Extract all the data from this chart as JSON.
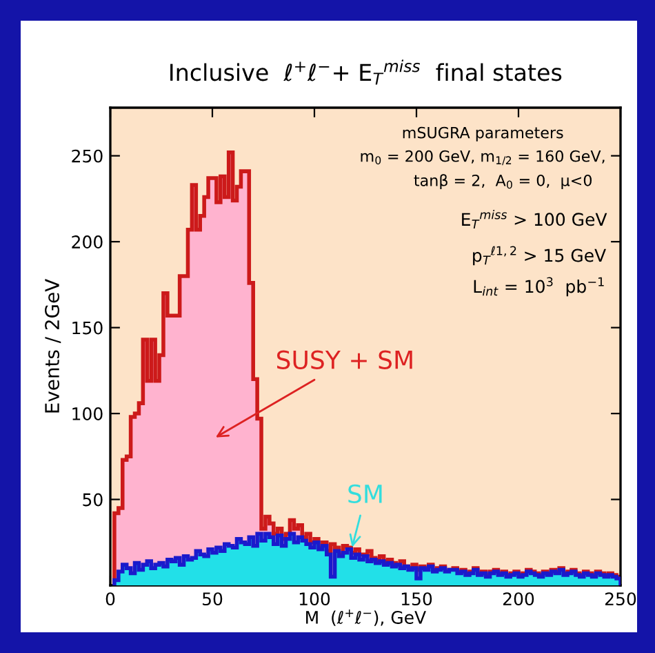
{
  "chart_data": {
    "type": "histogram",
    "title": "Inclusive  ℓ$^{+}$ℓ$^{−}$+ E$_{T}$$^{miss}$  final states",
    "xlabel": "M  (ℓ$^{+}$ℓ$^{−}$), GeV",
    "ylabel": "Events / 2GeV",
    "bins": [
      2,
      4,
      6,
      8,
      10,
      12,
      14,
      16,
      18,
      20,
      22,
      24,
      26,
      28,
      30,
      32,
      34,
      36,
      38,
      40,
      42,
      44,
      46,
      48,
      50,
      52,
      54,
      56,
      58,
      60,
      62,
      64,
      66,
      68,
      70,
      72,
      74,
      76,
      78,
      80,
      82,
      84,
      86,
      88,
      90,
      92,
      94,
      96,
      98,
      100,
      102,
      104,
      106,
      108,
      110,
      112,
      114,
      116,
      118,
      120,
      122,
      124,
      126,
      128,
      130,
      132,
      134,
      136,
      138,
      140,
      142,
      144,
      146,
      148,
      150,
      152,
      154,
      156,
      158,
      160,
      162,
      164,
      166,
      168,
      170,
      172,
      174,
      176,
      178,
      180,
      182,
      184,
      186,
      188,
      190,
      192,
      194,
      196,
      198,
      200,
      202,
      204,
      206,
      208,
      210,
      212,
      214,
      216,
      218,
      220,
      222,
      224,
      226,
      228,
      230,
      232,
      234,
      236,
      238,
      240,
      242,
      244,
      246,
      248,
      250
    ],
    "series": [
      {
        "name": "SUSY + SM",
        "color": "#ffb3cf",
        "values": [
          42,
          45,
          73,
          75,
          98,
          100,
          106,
          143,
          119,
          143,
          119,
          134,
          170,
          157,
          157,
          157,
          180,
          180,
          207,
          233,
          207,
          215,
          226,
          237,
          237,
          223,
          238,
          226,
          252,
          224,
          232,
          241,
          241,
          176,
          120,
          97,
          33,
          40,
          36,
          30,
          33,
          27,
          30,
          38,
          33,
          35,
          28,
          30,
          25,
          27,
          22,
          25,
          20,
          24,
          22,
          18,
          23,
          22,
          19,
          21,
          18,
          18,
          20,
          16,
          15,
          17,
          14,
          15,
          13,
          12,
          14,
          11,
          10,
          12,
          9,
          11,
          10,
          12,
          9,
          10,
          11,
          8,
          9,
          10,
          8,
          9,
          7,
          8,
          10,
          7,
          8,
          6,
          8,
          9,
          7,
          8,
          6,
          7,
          8,
          6,
          7,
          9,
          8,
          7,
          6,
          8,
          7,
          9,
          8,
          10,
          7,
          8,
          9,
          7,
          6,
          8,
          7,
          6,
          8,
          7,
          6,
          7,
          6,
          5
        ]
      },
      {
        "name": "SM",
        "color": "#22e0e8",
        "values": [
          3,
          8,
          12,
          10,
          7,
          13,
          9,
          12,
          14,
          10,
          12,
          13,
          11,
          15,
          14,
          16,
          12,
          17,
          15,
          16,
          20,
          18,
          17,
          21,
          19,
          22,
          20,
          24,
          23,
          22,
          27,
          25,
          24,
          28,
          23,
          30,
          26,
          30,
          28,
          24,
          29,
          23,
          27,
          30,
          25,
          28,
          26,
          24,
          22,
          25,
          21,
          23,
          18,
          5,
          20,
          17,
          19,
          21,
          16,
          18,
          15,
          17,
          14,
          15,
          13,
          14,
          12,
          13,
          11,
          12,
          10,
          11,
          9,
          10,
          4,
          10,
          9,
          11,
          8,
          9,
          10,
          8,
          9,
          9,
          7,
          8,
          6,
          7,
          9,
          6,
          7,
          5,
          7,
          8,
          6,
          7,
          5,
          6,
          7,
          5,
          6,
          8,
          7,
          6,
          5,
          7,
          6,
          8,
          7,
          9,
          6,
          7,
          8,
          6,
          5,
          7,
          6,
          5,
          7,
          6,
          5,
          6,
          5,
          4
        ]
      }
    ],
    "annotations": [
      "mSUGRA parameters",
      "m$_{0}$ = 200 GeV, m$_{1/2}$ = 160 GeV,",
      "tanβ = 2,  A$_{0}$ = 0,  μ<0",
      "E$_{T}$$^{miss}$ > 100 GeV",
      "p$_{T}$$^{ℓ1,2}$ > 15 GeV",
      "L$_{int}$ = 10$^{3}$  pb$^{−1}$"
    ],
    "xlim": [
      0,
      250
    ],
    "ylim": [
      0,
      278
    ],
    "xticks": [
      0,
      50,
      100,
      150,
      200,
      250
    ],
    "yticks": [
      50,
      100,
      150,
      200,
      250
    ],
    "grid": false,
    "legend": false
  }
}
